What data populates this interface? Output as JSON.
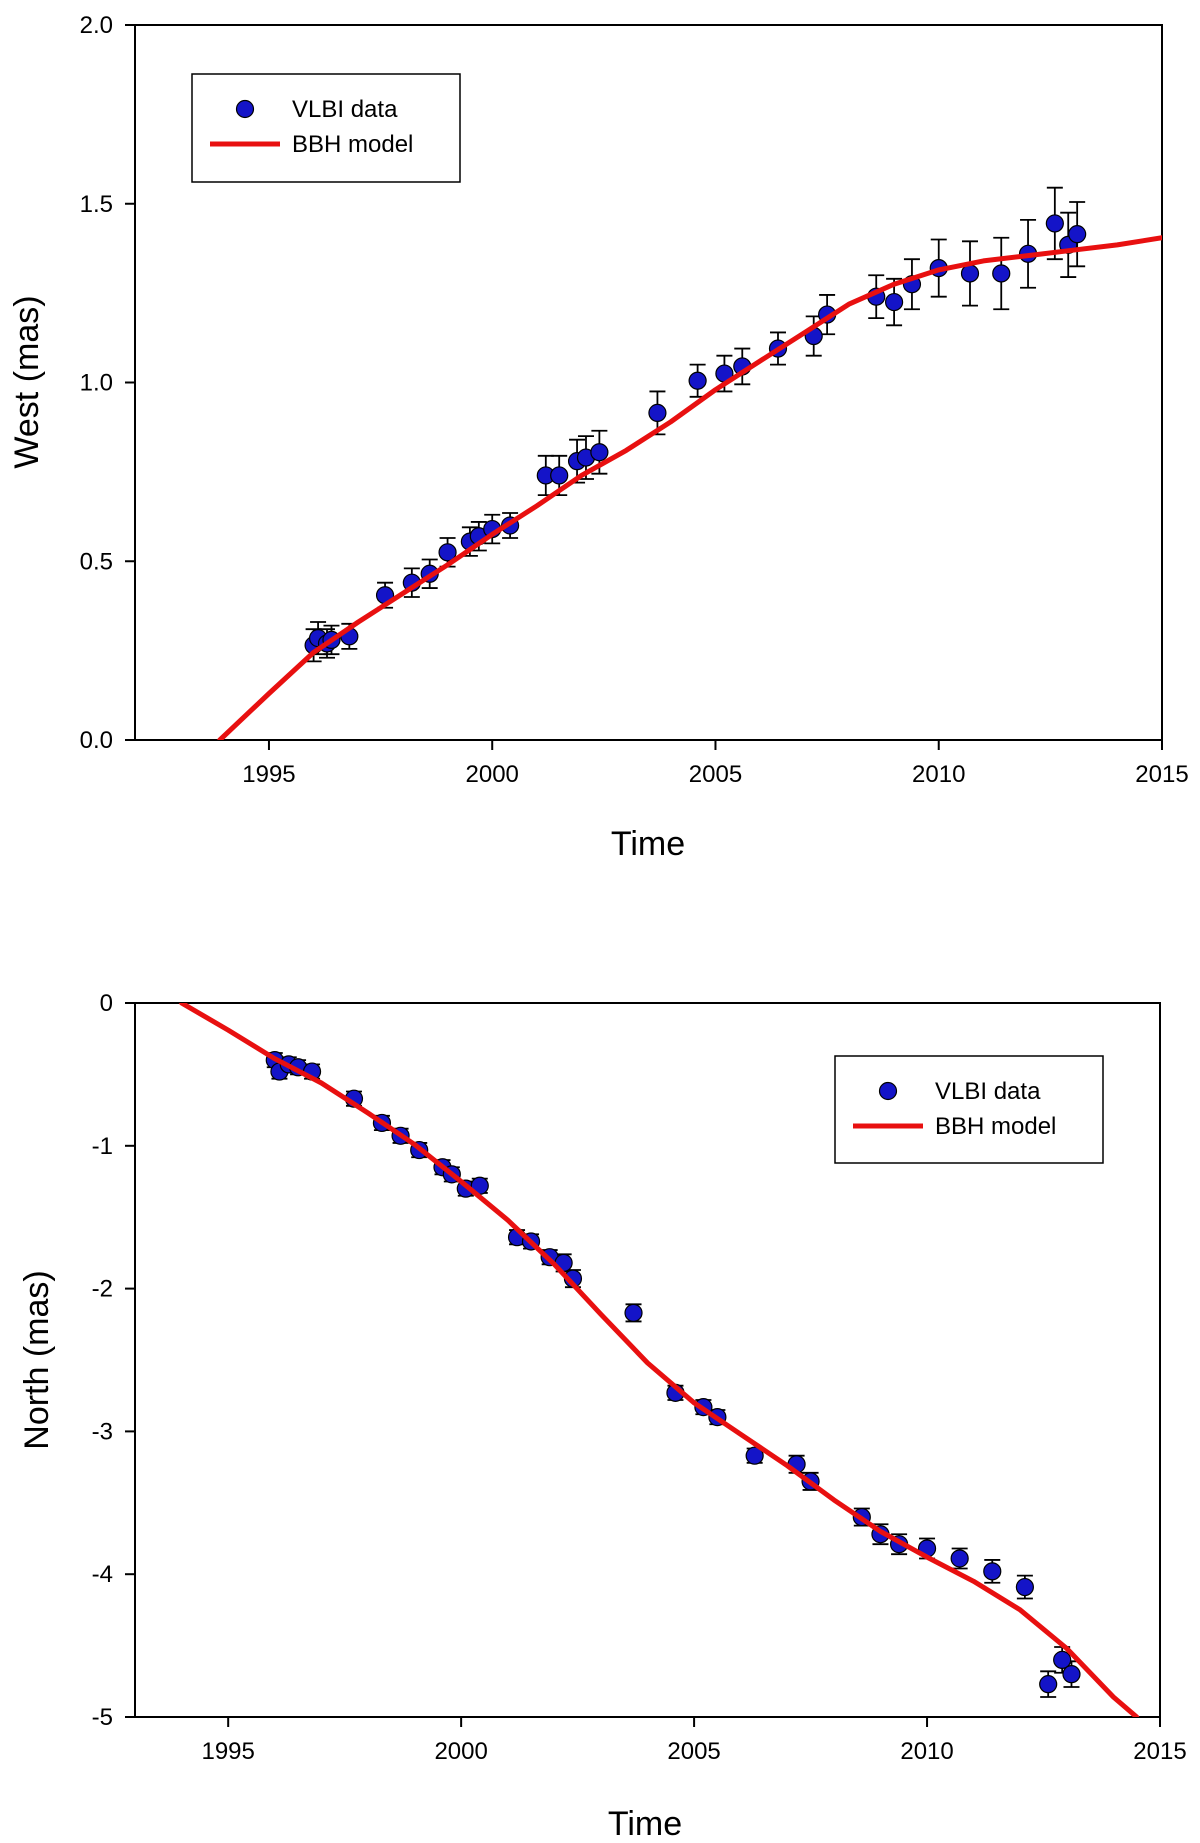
{
  "chart_data": [
    {
      "type": "scatter",
      "title": "",
      "xlabel": "Time",
      "ylabel": "West (mas)",
      "xlim": [
        1992,
        2015
      ],
      "ylim": [
        0,
        2.0
      ],
      "xticks": [
        1995,
        2000,
        2005,
        2010,
        2015
      ],
      "xtick_labels": [
        "1995",
        "2000",
        "2005",
        "2010",
        "2015"
      ],
      "yticks": [
        0,
        0.5,
        1.0,
        1.5,
        2.0
      ],
      "ytick_labels": [
        "0.0",
        "0.5",
        "1.0",
        "1.5",
        "2.0"
      ],
      "legend_position": "top-left",
      "series": [
        {
          "name": "VLBI data",
          "kind": "points-with-error-bars",
          "color": "#1414c8",
          "x": [
            1996.0,
            1996.1,
            1996.3,
            1996.4,
            1996.8,
            1997.6,
            1998.2,
            1998.6,
            1999.0,
            1999.5,
            1999.7,
            2000.0,
            2000.4,
            2001.2,
            2001.5,
            2001.9,
            2002.1,
            2002.4,
            2003.7,
            2004.6,
            2005.2,
            2005.6,
            2006.4,
            2007.2,
            2007.5,
            2008.6,
            2009.0,
            2009.4,
            2010.0,
            2010.7,
            2011.4,
            2012.0,
            2012.6,
            2012.9,
            2013.1
          ],
          "y": [
            0.265,
            0.285,
            0.27,
            0.28,
            0.29,
            0.405,
            0.44,
            0.465,
            0.525,
            0.555,
            0.57,
            0.59,
            0.6,
            0.74,
            0.74,
            0.78,
            0.79,
            0.805,
            0.915,
            1.005,
            1.025,
            1.045,
            1.095,
            1.13,
            1.19,
            1.24,
            1.225,
            1.275,
            1.32,
            1.305,
            1.305,
            1.36,
            1.445,
            1.385,
            1.415
          ],
          "err": [
            0.045,
            0.045,
            0.04,
            0.04,
            0.035,
            0.035,
            0.04,
            0.04,
            0.04,
            0.04,
            0.04,
            0.04,
            0.035,
            0.055,
            0.055,
            0.06,
            0.06,
            0.06,
            0.06,
            0.045,
            0.05,
            0.05,
            0.045,
            0.055,
            0.055,
            0.06,
            0.065,
            0.07,
            0.08,
            0.09,
            0.1,
            0.095,
            0.1,
            0.09,
            0.09
          ]
        },
        {
          "name": "BBH model",
          "kind": "line",
          "color": "#e81010",
          "x": [
            1993.9,
            1995.0,
            1996.0,
            1997.0,
            1998.0,
            1999.0,
            2000.0,
            2001.0,
            2002.0,
            2003.0,
            2004.0,
            2005.0,
            2006.0,
            2007.0,
            2008.0,
            2009.0,
            2010.0,
            2011.0,
            2012.0,
            2013.0,
            2014.0,
            2015.0
          ],
          "y": [
            0.0,
            0.13,
            0.245,
            0.33,
            0.41,
            0.49,
            0.575,
            0.655,
            0.74,
            0.81,
            0.89,
            0.98,
            1.06,
            1.14,
            1.22,
            1.275,
            1.315,
            1.34,
            1.355,
            1.37,
            1.385,
            1.405
          ]
        }
      ]
    },
    {
      "type": "scatter",
      "title": "",
      "xlabel": "Time",
      "ylabel": "North (mas)",
      "xlim": [
        1993,
        2015
      ],
      "ylim": [
        -5,
        0
      ],
      "xticks": [
        1995,
        2000,
        2005,
        2010,
        2015
      ],
      "xtick_labels": [
        "1995",
        "2000",
        "2005",
        "2010",
        "2015"
      ],
      "yticks": [
        0,
        -1,
        -2,
        -3,
        -4,
        -5
      ],
      "ytick_labels": [
        "0",
        "-1",
        "-2",
        "-3",
        "-4",
        "-5"
      ],
      "legend_position": "top-right",
      "series": [
        {
          "name": "VLBI data",
          "kind": "points-with-error-bars",
          "color": "#1414c8",
          "x": [
            1996.0,
            1996.1,
            1996.3,
            1996.5,
            1996.8,
            1997.7,
            1998.3,
            1998.7,
            1999.1,
            1999.6,
            1999.8,
            2000.1,
            2000.4,
            2001.2,
            2001.5,
            2001.9,
            2002.2,
            2002.4,
            2003.7,
            2004.6,
            2005.2,
            2005.5,
            2006.3,
            2007.2,
            2007.5,
            2008.6,
            2009.0,
            2009.4,
            2010.0,
            2010.7,
            2011.4,
            2012.1,
            2012.6,
            2012.9,
            2013.1
          ],
          "y": [
            -0.4,
            -0.48,
            -0.43,
            -0.45,
            -0.48,
            -0.67,
            -0.84,
            -0.93,
            -1.03,
            -1.15,
            -1.2,
            -1.3,
            -1.28,
            -1.64,
            -1.67,
            -1.78,
            -1.82,
            -1.93,
            -2.17,
            -2.73,
            -2.83,
            -2.9,
            -3.17,
            -3.23,
            -3.35,
            -3.6,
            -3.72,
            -3.79,
            -3.82,
            -3.89,
            -3.98,
            -4.09,
            -4.77,
            -4.6,
            -4.7
          ],
          "err": [
            0.05,
            0.05,
            0.05,
            0.05,
            0.05,
            0.05,
            0.05,
            0.05,
            0.05,
            0.05,
            0.05,
            0.05,
            0.05,
            0.05,
            0.05,
            0.05,
            0.06,
            0.06,
            0.06,
            0.05,
            0.05,
            0.05,
            0.05,
            0.06,
            0.06,
            0.06,
            0.07,
            0.07,
            0.07,
            0.07,
            0.08,
            0.08,
            0.09,
            0.09,
            0.09
          ]
        },
        {
          "name": "BBH model",
          "kind": "line",
          "color": "#e81010",
          "x": [
            1994.0,
            1995.0,
            1996.0,
            1997.0,
            1998.0,
            1999.0,
            2000.0,
            2001.0,
            2002.0,
            2003.0,
            2004.0,
            2005.0,
            2006.0,
            2007.0,
            2008.0,
            2009.0,
            2010.0,
            2011.0,
            2012.0,
            2013.0,
            2014.0,
            2014.5
          ],
          "y": [
            0.0,
            -0.19,
            -0.39,
            -0.56,
            -0.77,
            -0.99,
            -1.25,
            -1.52,
            -1.83,
            -2.18,
            -2.52,
            -2.8,
            -3.02,
            -3.24,
            -3.48,
            -3.7,
            -3.88,
            -4.05,
            -4.25,
            -4.52,
            -4.86,
            -5.0
          ]
        }
      ]
    }
  ]
}
